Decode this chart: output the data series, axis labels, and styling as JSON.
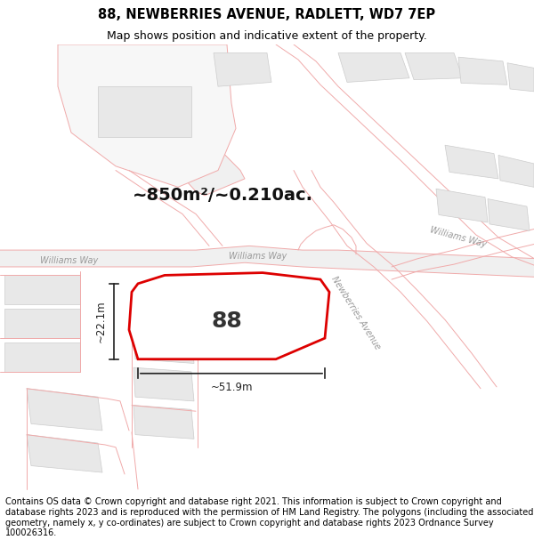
{
  "title_line1": "88, NEWBERRIES AVENUE, RADLETT, WD7 7EP",
  "title_line2": "Map shows position and indicative extent of the property.",
  "footer_text": "Contains OS data © Crown copyright and database right 2021. This information is subject to Crown copyright and database rights 2023 and is reproduced with the permission of HM Land Registry. The polygons (including the associated geometry, namely x, y co-ordinates) are subject to Crown copyright and database rights 2023 Ordnance Survey 100026316.",
  "area_text": "~850m²/~0.210ac.",
  "label_88": "88",
  "dim_width": "~51.9m",
  "dim_height": "~22.1m",
  "road_label_ww_left": "Williams Way",
  "road_label_ww_right": "Williams Way",
  "road_label_na": "Newberries Avenue",
  "map_bg": "#ffffff",
  "plot_fill": "#ffffff",
  "plot_edge": "#dd0000",
  "road_line_color": "#f0aaaa",
  "road_fill_color": "#f5f5f5",
  "building_fill": "#e8e8e8",
  "building_edge": "#cccccc",
  "road_label_color": "#999999",
  "dim_color": "#222222",
  "area_text_color": "#111111",
  "title_fontsize": 10.5,
  "subtitle_fontsize": 9,
  "footer_fontsize": 7,
  "label_fontsize": 18,
  "area_fontsize": 14,
  "dim_fontsize": 8.5,
  "road_label_fontsize": 7
}
